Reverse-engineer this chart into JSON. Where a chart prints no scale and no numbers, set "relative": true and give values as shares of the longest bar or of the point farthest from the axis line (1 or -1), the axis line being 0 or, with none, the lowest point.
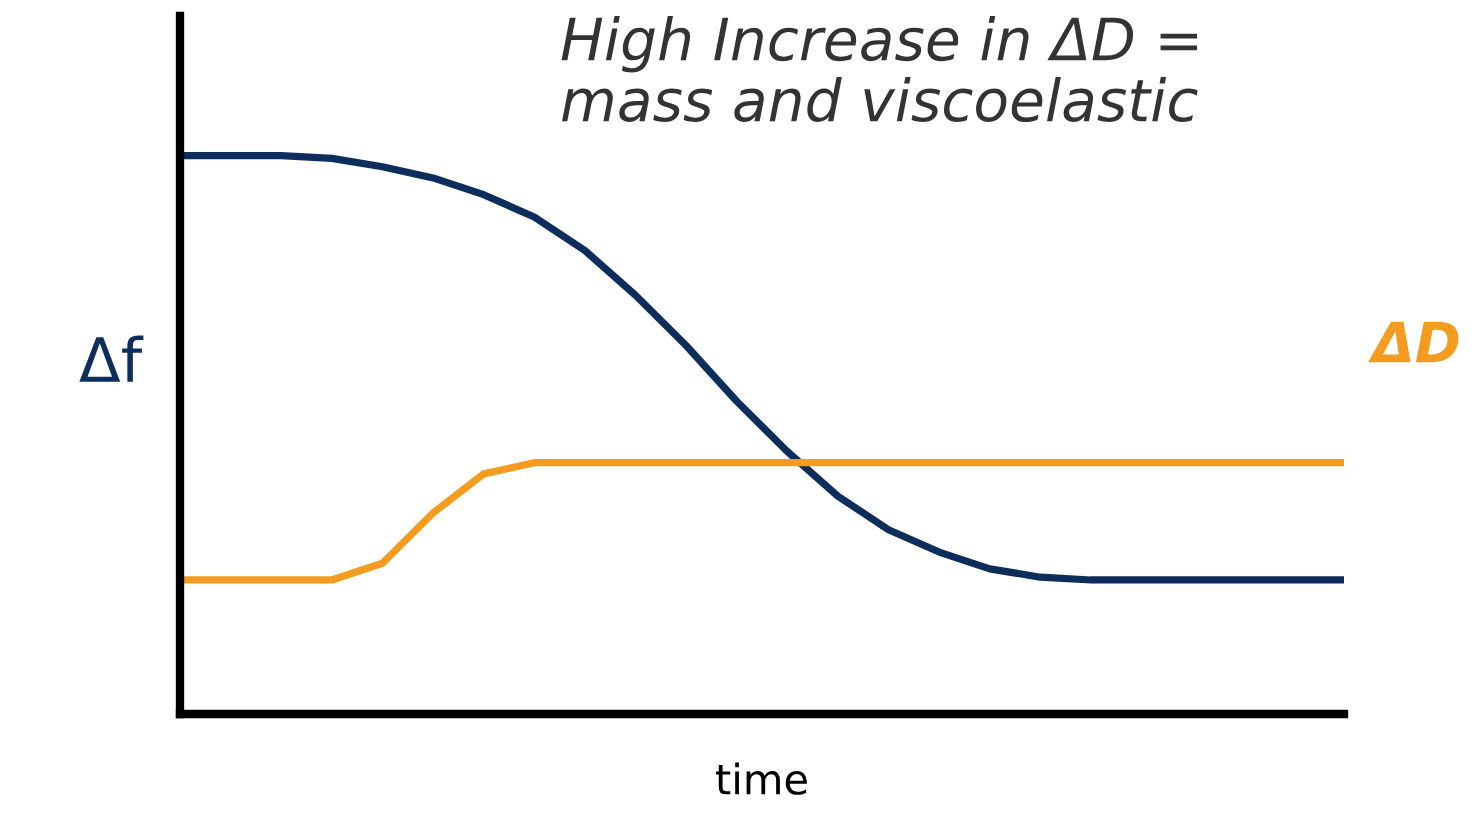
{
  "chart_data": {
    "type": "line",
    "title": "High Increase in ΔD =\nmass and viscoelastic",
    "xlabel": "time",
    "ylabel": "Δf",
    "relative": true,
    "categories": [
      null,
      null,
      null,
      null,
      null,
      null,
      null,
      null,
      null,
      null,
      null,
      null,
      null,
      null,
      null,
      null,
      null,
      null,
      null,
      null,
      null,
      null,
      null,
      null
    ],
    "series": [
      {
        "color": "#0d2d5c",
        "values": [
          1,
          1,
          1,
          0.995,
          0.98,
          0.96,
          0.93,
          0.89,
          0.83,
          0.75,
          0.66,
          0.56,
          0.47,
          0.39,
          0.33,
          0.29,
          0.26,
          0.245,
          0.24,
          0.24,
          0.24,
          0.24,
          0.24,
          0.24
        ]
      },
      {
        "name": "ΔD",
        "color": "#f39c1f",
        "values": [
          0.24,
          0.24,
          0.24,
          0.24,
          0.27,
          0.36,
          0.43,
          0.45,
          0.45,
          0.45,
          0.45,
          0.45,
          0.45,
          0.45,
          0.45,
          0.45,
          0.45,
          0.45,
          0.45,
          0.45,
          0.45,
          0.45,
          0.45,
          0.45
        ]
      }
    ],
    "grid": false,
    "legend": false
  }
}
